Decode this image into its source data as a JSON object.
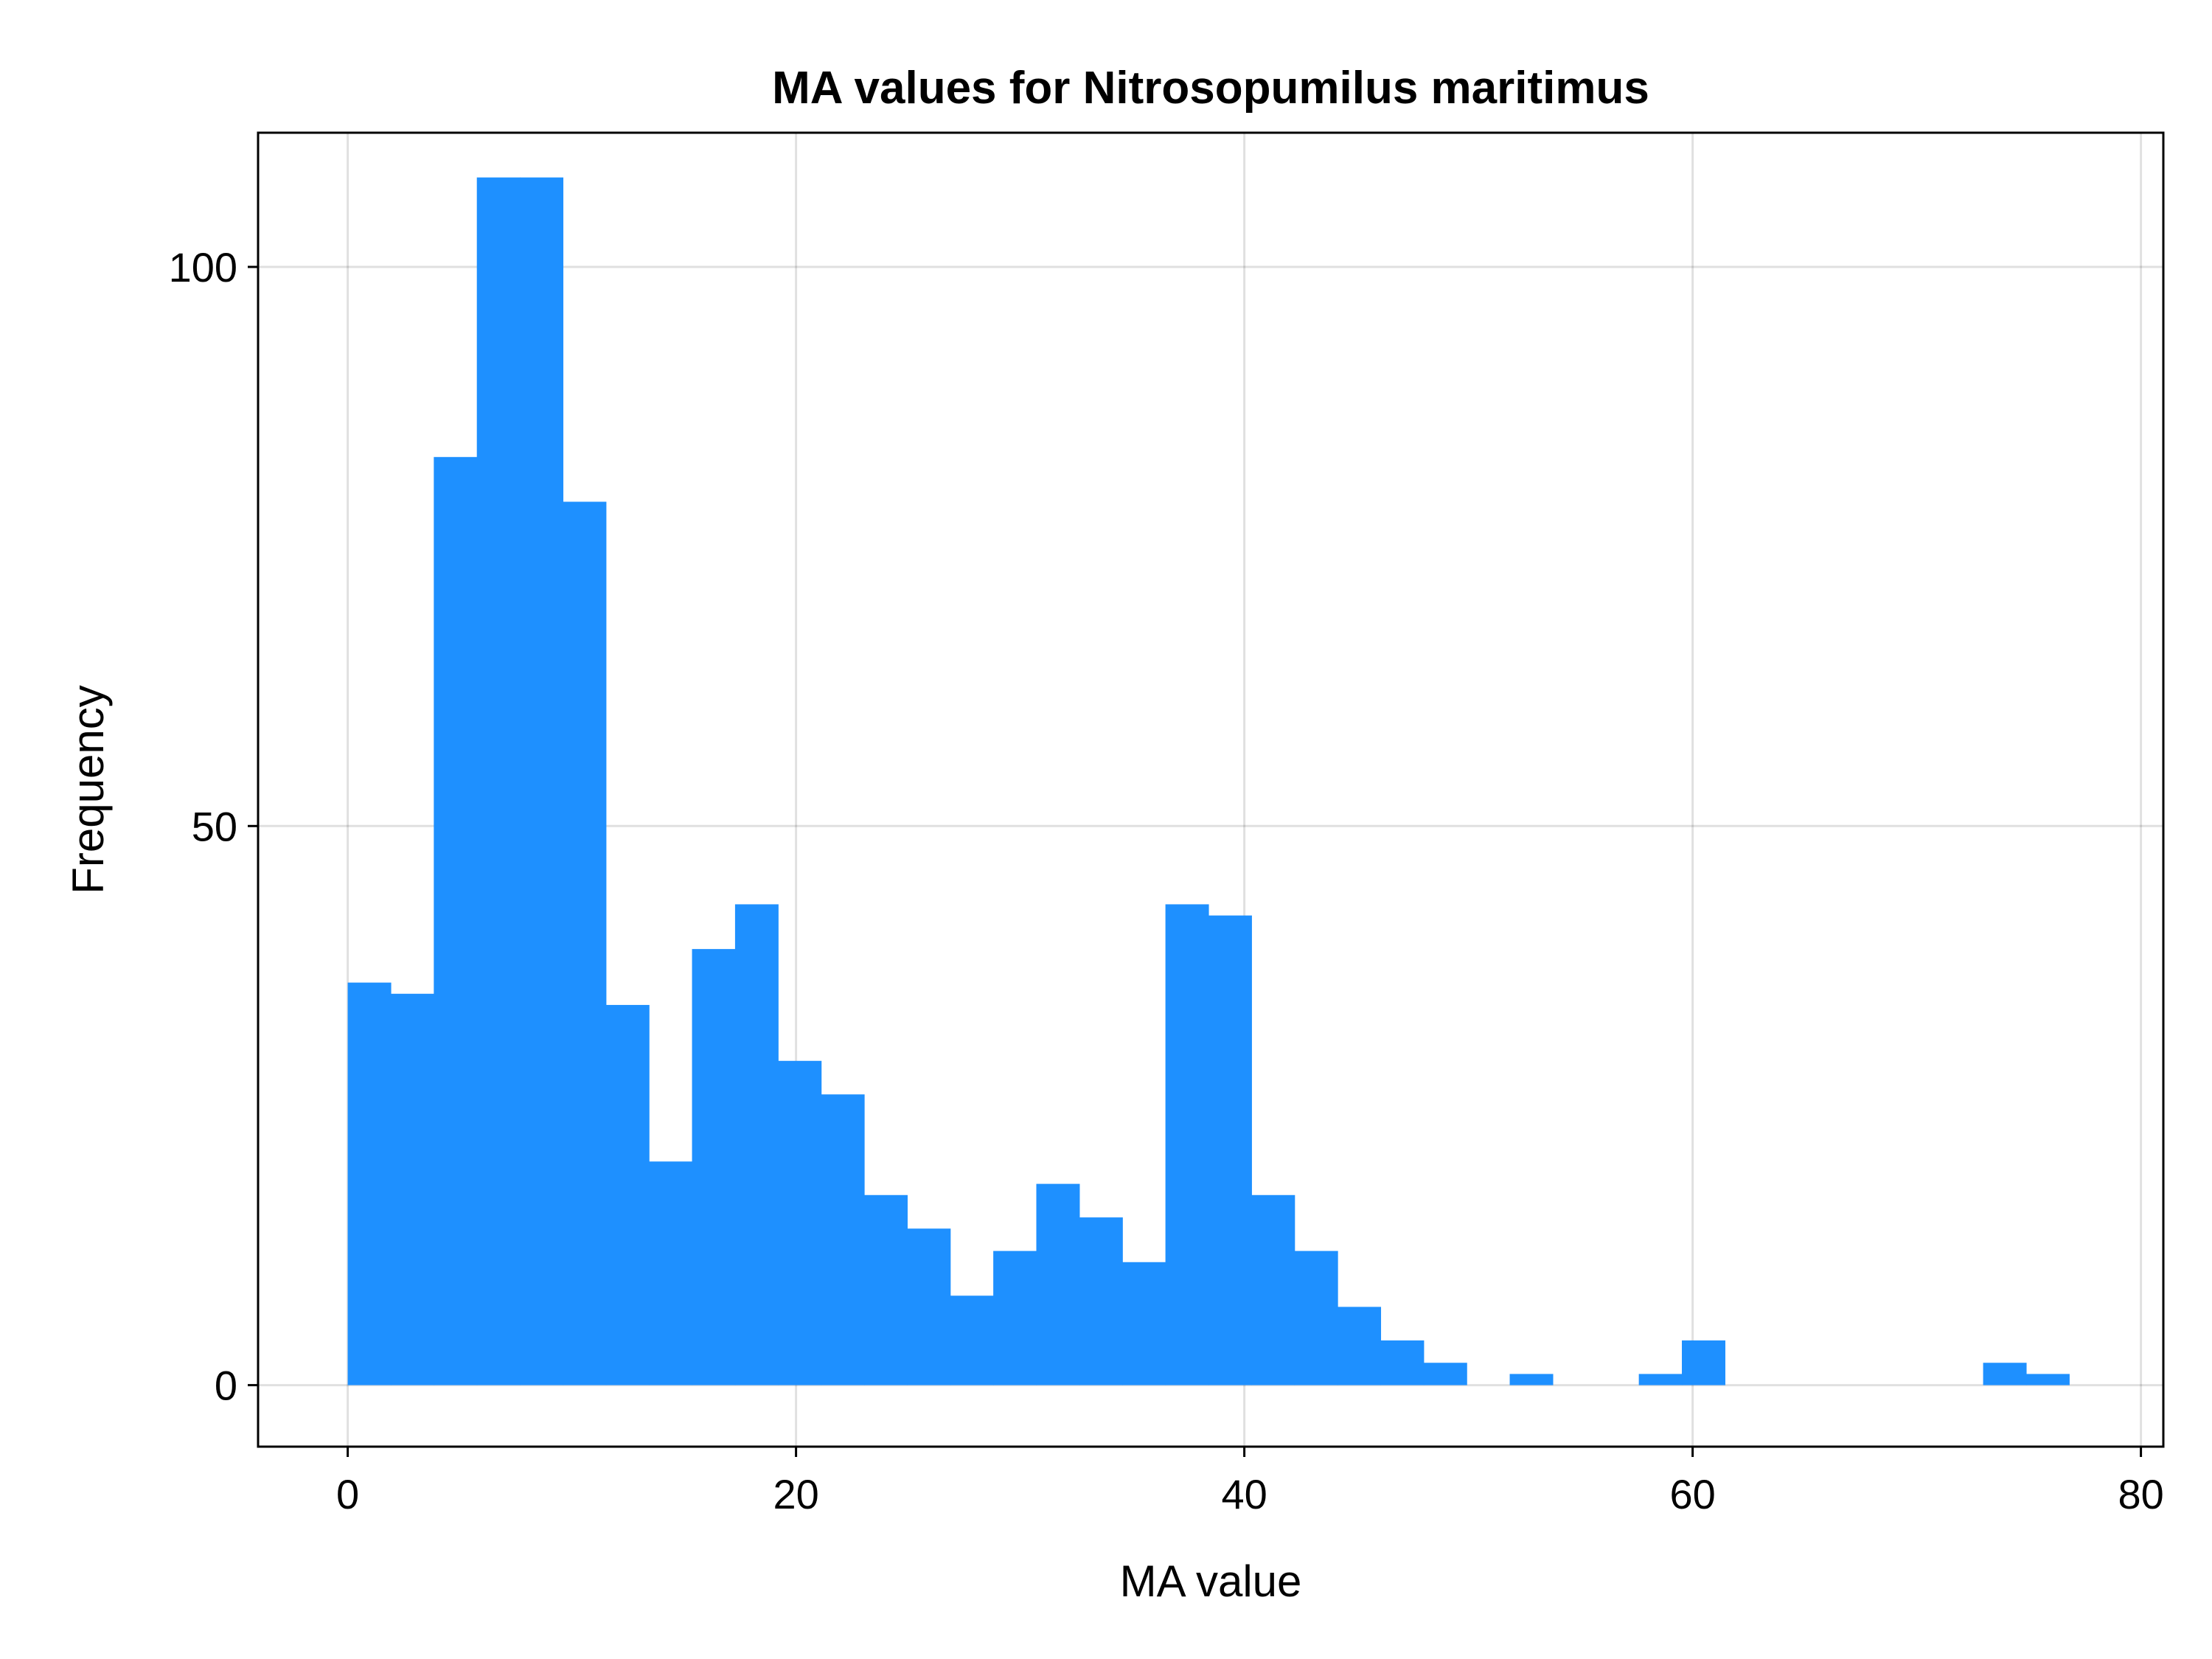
{
  "chart_data": {
    "type": "bar",
    "title": "MA values for Nitrosopumilus maritimus",
    "xlabel": "MA value",
    "ylabel": "Frequency",
    "bin_width": 1.92,
    "bin_start": 0,
    "values": [
      36,
      35,
      83,
      108,
      108,
      79,
      34,
      20,
      39,
      43,
      29,
      26,
      17,
      14,
      8,
      12,
      18,
      15,
      11,
      43,
      42,
      17,
      12,
      7,
      4,
      2,
      0,
      1,
      0,
      0,
      1,
      4,
      0,
      0,
      0,
      0,
      0,
      0,
      2,
      1
    ],
    "xlim": [
      -4,
      81
    ],
    "ylim": [
      -5.5,
      112
    ],
    "xticks": [
      0,
      20,
      40,
      60,
      80
    ],
    "yticks": [
      0,
      50,
      100
    ],
    "grid": true,
    "legend": "none",
    "bar_color": "#1E90FF"
  }
}
